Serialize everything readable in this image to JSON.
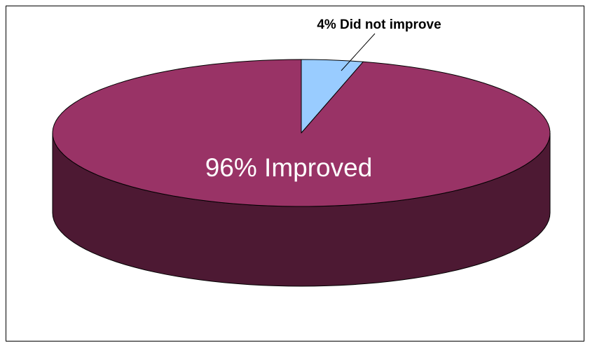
{
  "chart_data": {
    "type": "pie",
    "title": "",
    "slices": [
      {
        "label": "96% Improved",
        "value": 96,
        "color": "#993366",
        "side_color": "#4d1933"
      },
      {
        "label": "4% Did not improve",
        "value": 4,
        "color": "#99ccff",
        "side_color": "#4d6680"
      }
    ],
    "legend": "none",
    "style": "3d"
  }
}
